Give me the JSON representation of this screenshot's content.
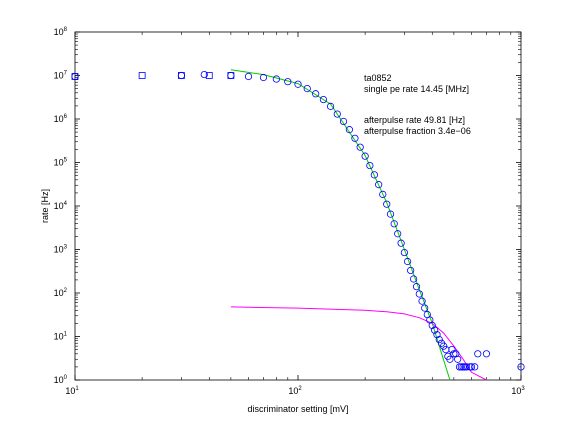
{
  "chart_data": {
    "type": "scatter",
    "title": "",
    "xlabel": "discriminator setting [mV]",
    "ylabel": "rate [Hz]",
    "xscale": "log",
    "yscale": "log",
    "xlim": [
      10,
      1000
    ],
    "ylim": [
      1,
      100000000
    ],
    "x_ticks": [
      10,
      100,
      1000
    ],
    "y_ticks": [
      1,
      10,
      100,
      1000,
      10000,
      100000,
      1000000,
      10000000,
      100000000
    ],
    "grid": false,
    "annotations": [
      "ta0852",
      "single pe rate 14.45 [MHz]",
      "afterpulse rate 49.81 [Hz]",
      "afterpulse fraction 3.4e−06"
    ],
    "series": [
      {
        "type": "scatter",
        "marker": "circle",
        "color": "#0000ff",
        "points": [
          [
            10,
            9500000.0
          ],
          [
            30,
            10000000.0
          ],
          [
            38,
            10500000.0
          ],
          [
            50,
            10000000.0
          ],
          [
            60,
            9500000.0
          ],
          [
            70,
            9000000.0
          ],
          [
            80,
            8300000.0
          ],
          [
            90,
            7200000.0
          ],
          [
            100,
            6300000.0
          ],
          [
            110,
            5000000.0
          ],
          [
            120,
            3800000.0
          ],
          [
            130,
            2800000.0
          ],
          [
            140,
            1950000.0
          ],
          [
            150,
            1300000.0
          ],
          [
            160,
            880000.0
          ],
          [
            170,
            570000.0
          ],
          [
            180,
            360000.0
          ],
          [
            190,
            225000.0
          ],
          [
            200,
            140000.0
          ],
          [
            210,
            85000.0
          ],
          [
            220,
            52000.0
          ],
          [
            230,
            31000.0
          ],
          [
            240,
            18500.0
          ],
          [
            250,
            11000.0
          ],
          [
            260,
            6500
          ],
          [
            270,
            3900
          ],
          [
            280,
            2300
          ],
          [
            290,
            1400
          ],
          [
            300,
            850
          ],
          [
            310,
            530
          ],
          [
            320,
            330
          ],
          [
            330,
            210
          ],
          [
            340,
            140
          ],
          [
            350,
            95
          ],
          [
            360,
            65
          ],
          [
            370,
            45
          ],
          [
            380,
            32
          ],
          [
            390,
            24
          ],
          [
            400,
            18
          ],
          [
            410,
            14
          ],
          [
            420,
            11
          ],
          [
            430,
            8.5
          ],
          [
            440,
            7
          ],
          [
            450,
            6
          ],
          [
            460,
            5
          ],
          [
            470,
            3.5
          ],
          [
            480,
            3
          ],
          [
            490,
            5
          ],
          [
            500,
            4
          ],
          [
            510,
            4
          ],
          [
            520,
            3
          ],
          [
            530,
            2
          ],
          [
            540,
            2
          ],
          [
            550,
            2
          ],
          [
            560,
            2
          ],
          [
            570,
            2
          ],
          [
            590,
            2
          ],
          [
            600,
            2
          ],
          [
            620,
            2
          ],
          [
            640,
            4
          ],
          [
            700,
            4
          ],
          [
            1000,
            2
          ]
        ]
      },
      {
        "type": "scatter",
        "marker": "square",
        "color": "#0000ff",
        "points": [
          [
            10,
            9500000.0
          ],
          [
            20,
            10000000.0
          ],
          [
            30,
            10000000.0
          ],
          [
            40,
            10000000.0
          ],
          [
            50,
            10000000.0
          ]
        ]
      },
      {
        "type": "line",
        "color": "#00cc00",
        "points": [
          [
            50,
            13500000.0
          ],
          [
            70,
            10500000.0
          ],
          [
            100,
            6500000.0
          ],
          [
            140,
            2200000.0
          ],
          [
            200,
            145000.0
          ],
          [
            250,
            12000.0
          ],
          [
            300,
            1000
          ],
          [
            350,
            120
          ],
          [
            400,
            20
          ],
          [
            430,
            6
          ],
          [
            460,
            2
          ],
          [
            480,
            1
          ]
        ]
      },
      {
        "type": "line",
        "color": "#ff00ff",
        "points": [
          [
            50,
            48
          ],
          [
            100,
            45
          ],
          [
            150,
            42
          ],
          [
            200,
            40
          ],
          [
            250,
            37
          ],
          [
            300,
            33
          ],
          [
            350,
            27
          ],
          [
            400,
            20
          ],
          [
            450,
            12
          ],
          [
            500,
            6
          ],
          [
            550,
            3
          ],
          [
            600,
            1.5
          ],
          [
            700,
            1
          ]
        ]
      }
    ]
  }
}
